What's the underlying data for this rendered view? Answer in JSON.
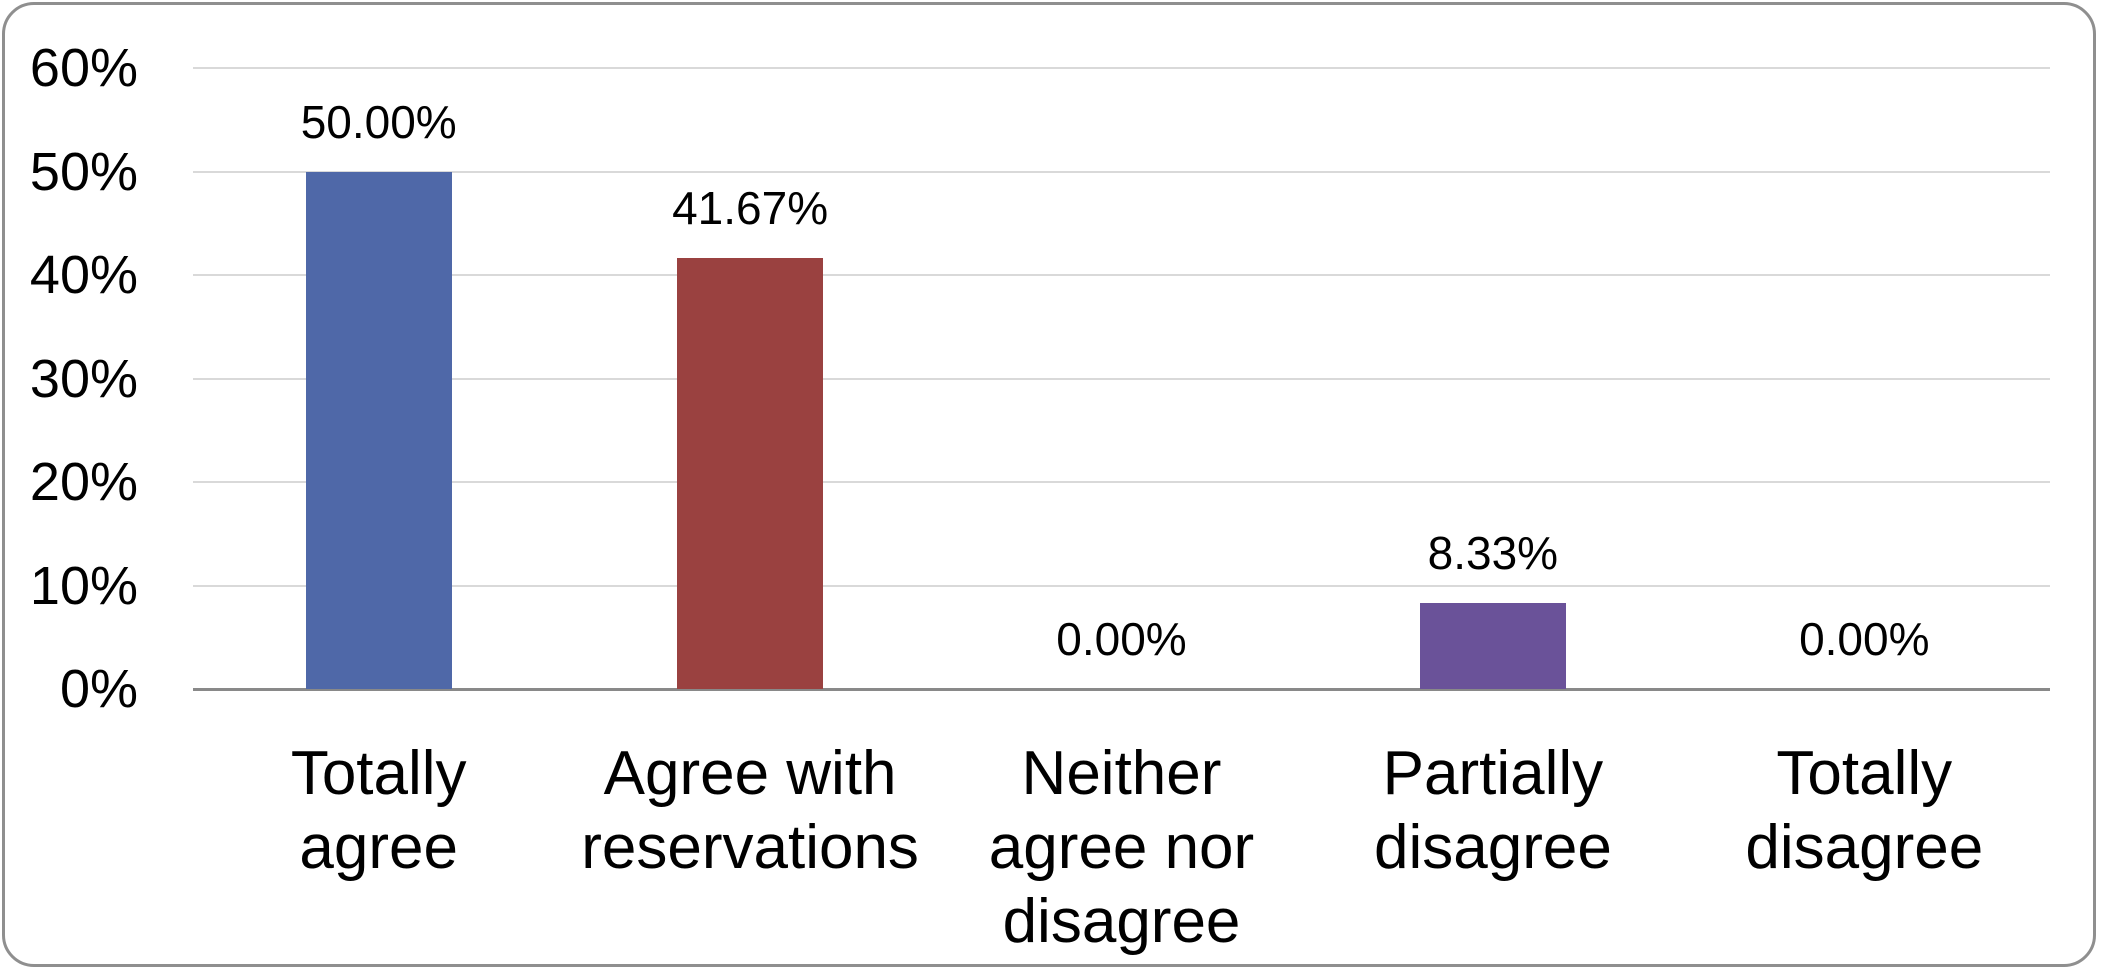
{
  "chart_data": {
    "type": "bar",
    "title": "",
    "xlabel": "",
    "ylabel": "",
    "categories": [
      "Totally agree",
      "Agree with reservations",
      "Neither agree nor disagree",
      "Partially disagree",
      "Totally disagree"
    ],
    "category_lines": [
      [
        "Totally",
        "agree"
      ],
      [
        "Agree with",
        "reservations"
      ],
      [
        "Neither",
        "agree nor",
        "disagree"
      ],
      [
        "Partially",
        "disagree"
      ],
      [
        "Totally",
        "disagree"
      ]
    ],
    "values": [
      50.0,
      41.67,
      0.0,
      8.33,
      0.0
    ],
    "data_labels": [
      "50.00%",
      "41.67%",
      "0.00%",
      "8.33%",
      "0.00%"
    ],
    "bar_colors": [
      "#4f68a8",
      "#9a4140",
      null,
      "#6a5299",
      null
    ],
    "ylim": [
      0,
      60
    ],
    "ytick_interval": 10,
    "yticks": [
      "0%",
      "10%",
      "20%",
      "30%",
      "40%",
      "50%",
      "60%"
    ],
    "grid": true,
    "legend": false,
    "gridline_color": "#d9d9d9",
    "axis_line_color": "#898989",
    "frame_border_color": "#8f8f8f",
    "text_color": "#000000",
    "background_color": "#ffffff"
  }
}
